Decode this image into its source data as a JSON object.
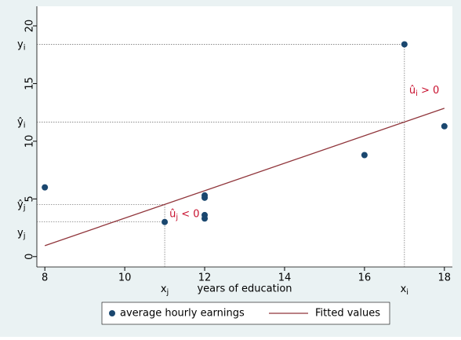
{
  "chart_data": {
    "type": "scatter",
    "xlabel": "years of education",
    "xlim": [
      7.8,
      18.2
    ],
    "xticks": [
      8,
      10,
      12,
      14,
      16,
      18
    ],
    "ylim": [
      -0.9,
      21.7
    ],
    "yticks": [
      0,
      5,
      10,
      15,
      20
    ],
    "series": [
      {
        "name": "average hourly earnings",
        "type": "scatter",
        "color": "#1a476f",
        "x": [
          8,
          11,
          12,
          12,
          12,
          12,
          16,
          17,
          18
        ],
        "values": [
          6.0,
          3.0,
          5.3,
          5.1,
          3.6,
          3.3,
          8.8,
          18.4,
          11.3
        ]
      },
      {
        "name": "Fitted values",
        "type": "line",
        "color": "#90353b",
        "x": [
          8,
          18
        ],
        "values": [
          0.95,
          12.86
        ]
      }
    ],
    "annotations": [
      {
        "base": "y",
        "sub": "i"
      },
      {
        "base": "ŷ",
        "sub": "i"
      },
      {
        "base": "ŷ",
        "sub": "j"
      },
      {
        "base": "y",
        "sub": "j"
      },
      {
        "base": "x",
        "sub": "j"
      },
      {
        "base": "x",
        "sub": "i"
      },
      {
        "base": "û",
        "sub": "i",
        "rest": " > 0"
      },
      {
        "base": "û",
        "sub": "j",
        "rest": " < 0"
      }
    ]
  }
}
